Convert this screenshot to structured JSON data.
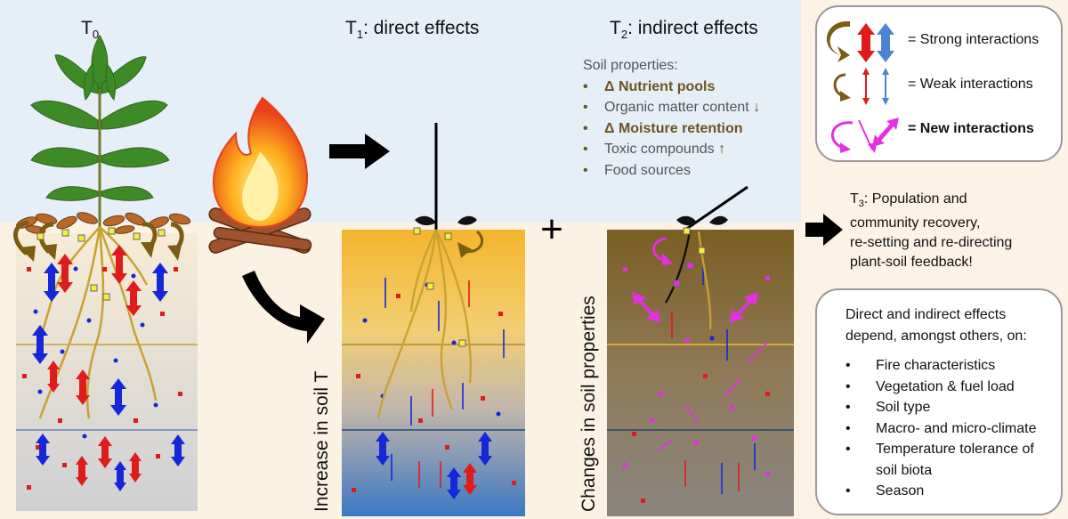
{
  "headers": {
    "t0_main": "T",
    "t0_sub": "0",
    "t1_main": "T",
    "t1_sub": "1",
    "t1_rest": ": direct effects",
    "t2_main": "T",
    "t2_sub": "2",
    "t2_rest": ": indirect effects"
  },
  "soil_properties": {
    "title": "Soil properties:",
    "items": [
      {
        "text": "Δ Nutrient pools",
        "bold": true,
        "arrow": ""
      },
      {
        "text": "Organic matter content",
        "bold": false,
        "arrow": "down"
      },
      {
        "text": "Δ Moisture retention",
        "bold": true,
        "arrow": ""
      },
      {
        "text": "Toxic compounds",
        "bold": false,
        "arrow": "up"
      },
      {
        "text": "Food sources",
        "bold": false,
        "arrow": ""
      }
    ]
  },
  "legend": {
    "strong": "= Strong interactions",
    "weak": "= Weak interactions",
    "new": "= New interactions"
  },
  "t3": {
    "main": "T",
    "sub": "3",
    "line1": ": Population and",
    "line2": "community recovery,",
    "line3": "re-setting and re-directing",
    "line4": "plant-soil feedback!"
  },
  "dependencies": {
    "line1": "Direct and indirect effects",
    "line2": "depend, amongst others, on:",
    "items": [
      "Fire characteristics",
      "Vegetation & fuel load",
      "Soil type",
      "Macro- and micro-climate",
      "Temperature tolerance of",
      "soil biota",
      "Season"
    ]
  },
  "vertical_labels": {
    "soil_t": "Increase in soil T",
    "soil_props": "Changes in soil properties"
  },
  "plus": "+",
  "colors": {
    "root": "#c8a232",
    "brown_arrow": "#7a5c12",
    "red": "#e01b1b",
    "blue": "#1527d9",
    "magenta": "#e52fe5",
    "leaf": "#3f8a28"
  }
}
